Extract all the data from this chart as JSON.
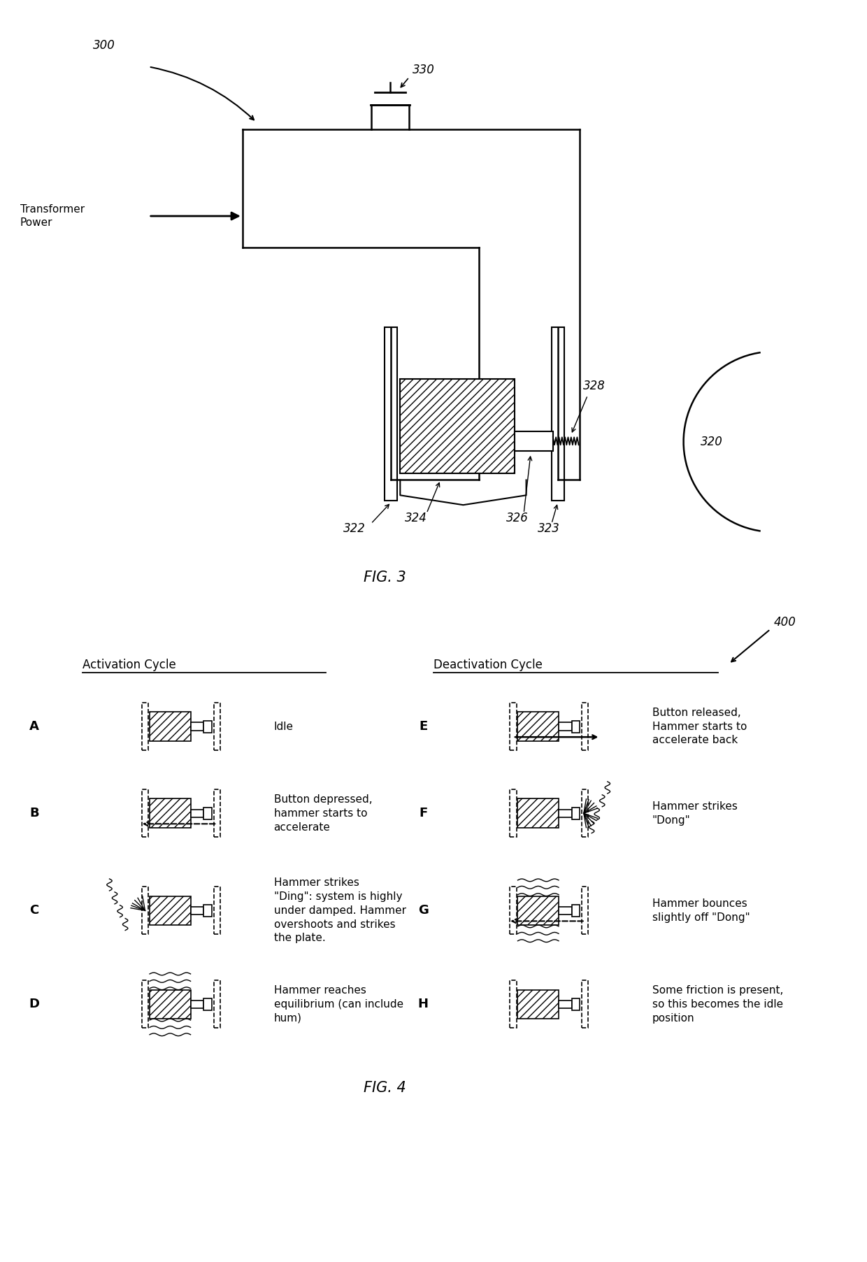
{
  "fig_width": 12.4,
  "fig_height": 18.05,
  "bg_color": "#ffffff",
  "line_color": "#000000",
  "fig3_title": "FIG. 3",
  "fig4_title": "FIG. 4",
  "label_300": "300",
  "label_330": "330",
  "label_320": "320",
  "label_322": "322",
  "label_323": "323",
  "label_324": "324",
  "label_326": "326",
  "label_328": "328",
  "label_400": "400",
  "transformer_text": "Transformer\nPower",
  "activation_title": "Activation Cycle",
  "deactivation_title": "Deactivation Cycle",
  "row_labels_act": [
    "A",
    "B",
    "C",
    "D"
  ],
  "row_labels_deact": [
    "E",
    "F",
    "G",
    "H"
  ],
  "row_descriptions": [
    "Idle",
    "Button depressed,\nhammer starts to\naccelerate",
    "Hammer strikes\n\"Ding\": system is highly\nunder damped. Hammer\novershoots and strikes\nthe plate.",
    "Hammer reaches\nequilibrium (can include\nhum)",
    "Button released,\nHammer starts to\naccelerate back",
    "Hammer strikes\n\"Dong\"",
    "Hammer bounces\nslightly off \"Dong\"",
    "Some friction is present,\nso this becomes the idle\nposition"
  ]
}
